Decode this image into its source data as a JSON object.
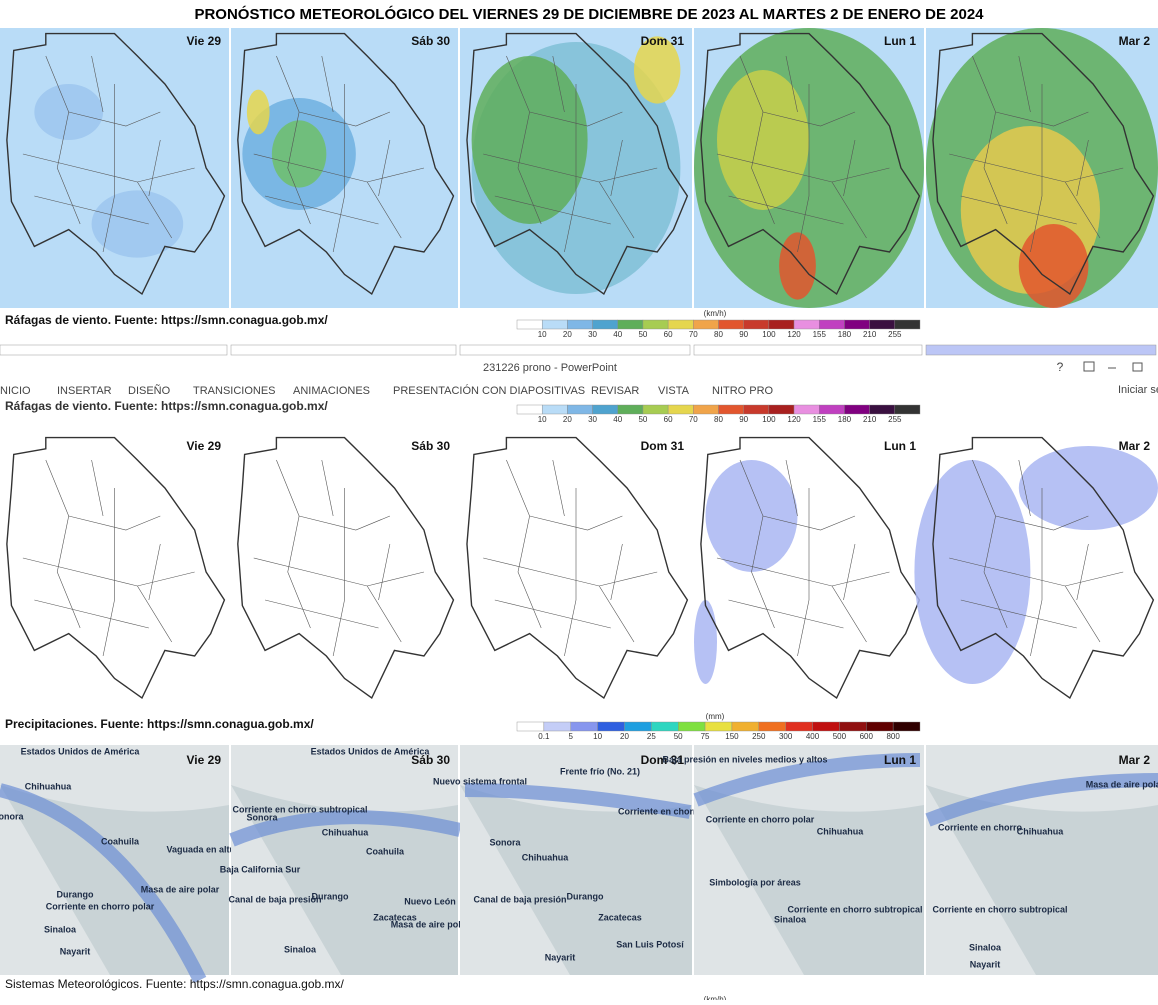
{
  "header": {
    "title": "PRONÓSTICO METEOROLÓGICO DEL VIERNES 29 DE DICIEMBRE DE 2023 AL MARTES 2 DE ENERO DE 2024"
  },
  "days": [
    "Vie 29",
    "Sáb 30",
    "Dom 31",
    "Lun 1",
    "Mar 2"
  ],
  "wind": {
    "caption": "Ráfagas de viento.  Fuente: https://smn.conagua.gob.mx/",
    "unit": "(km/h)",
    "ticks": [
      10,
      20,
      30,
      40,
      50,
      60,
      70,
      80,
      90,
      100,
      120,
      155,
      180,
      210,
      255
    ]
  },
  "precip": {
    "caption": "Precipitaciones.  Fuente: https://smn.conagua.gob.mx/",
    "unit": "(mm)",
    "ticks": [
      0.1,
      5,
      10,
      20,
      25,
      50,
      75,
      150,
      250,
      300,
      400,
      500,
      600,
      800
    ]
  },
  "systems": {
    "caption": "Sistemas Meteorológicos.    Fuente: https://smn.conagua.gob.mx/",
    "panels": [
      {
        "labels": [
          "Estados Unidos de América",
          "Chihuahua",
          "Coahuila",
          "Sonora",
          "Vaguada en altura",
          "Masa de aire polar",
          "Corriente en chorro polar",
          "Durango",
          "Sinaloa",
          "Nayarit"
        ]
      },
      {
        "labels": [
          "Estados Unidos de América",
          "Sonora",
          "Corriente en chorro subtropical",
          "Chihuahua",
          "Coahuila",
          "Canal de baja presión",
          "Durango",
          "Zacatecas",
          "Nuevo León",
          "Masa de aire polar",
          "Sinaloa",
          "Baja California Sur"
        ]
      },
      {
        "labels": [
          "Nuevo sistema frontal",
          "Frente frío (No. 21)",
          "Sonora",
          "Chihuahua",
          "Corriente en chorro",
          "Canal de baja presión",
          "Durango",
          "Zacatecas",
          "San Luis Potosí",
          "Nayarit"
        ]
      },
      {
        "labels": [
          "Baja presión en niveles medios y altos",
          "Corriente en chorro polar",
          "Chihuahua",
          "Simbología por áreas",
          "Corriente en chorro subtropical",
          "Sinaloa"
        ]
      },
      {
        "labels": [
          "Masa de aire polar",
          "Corriente en chorro",
          "Chihuahua",
          "Corriente en chorro subtropical",
          "Sinaloa",
          "Nayarit"
        ]
      }
    ]
  },
  "app": {
    "window_title": "231226 prono - PowerPoint",
    "menu": [
      "NICIO",
      "INSERTAR",
      "DISEÑO",
      "TRANSICIONES",
      "ANIMACIONES",
      "PRESENTACIÓN CON DIAPOSITIVAS",
      "REVISAR",
      "VISTA",
      "NITRO PRO"
    ],
    "sign_in": "Iniciar se",
    "help": "?"
  }
}
